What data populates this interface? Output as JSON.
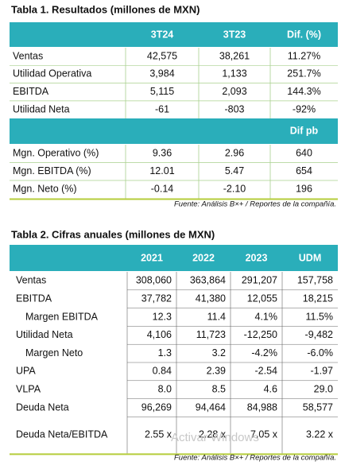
{
  "table1": {
    "title": "Tabla 1. Resultados (millones de MXN)",
    "header": [
      "3T24",
      "3T23",
      "Dif. (%)"
    ],
    "rows": [
      [
        "Ventas",
        "42,575",
        "38,261",
        "11.27%"
      ],
      [
        "Utilidad Operativa",
        "3,984",
        "1,133",
        "251.7%"
      ],
      [
        "EBITDA",
        "5,115",
        "2,093",
        "144.3%"
      ],
      [
        "Utilidad Neta",
        "-61",
        "-803",
        "-92%"
      ]
    ],
    "header2": "Dif pb",
    "rows2": [
      [
        "Mgn. Operativo (%)",
        "9.36",
        "2.96",
        "640"
      ],
      [
        "Mgn. EBITDA (%)",
        "12.01",
        "5.47",
        "654"
      ],
      [
        "Mgn. Neto (%)",
        "-0.14",
        "-2.10",
        "196"
      ]
    ],
    "source": "Fuente: Análisis B×+ / Reportes de la compañía."
  },
  "table2": {
    "title": "Tabla 2. Cifras anuales (millones de MXN)",
    "header": [
      "2021",
      "2022",
      "2023",
      "UDM"
    ],
    "rows": [
      [
        "Ventas",
        "308,060",
        "363,864",
        "291,207",
        "157,758"
      ],
      [
        "EBITDA",
        "37,782",
        "41,380",
        "12,055",
        "18,215"
      ],
      [
        "Margen EBITDA",
        "12.3",
        "11.4",
        "4.1%",
        "11.5%"
      ],
      [
        "Utilidad Neta",
        "4,106",
        "11,723",
        "-12,250",
        "-9,482"
      ],
      [
        "Margen Neto",
        "1.3",
        "3.2",
        "-4.2%",
        "-6.0%"
      ],
      [
        "UPA",
        "0.84",
        "2.39",
        "-2.54",
        "-1.97"
      ],
      [
        "VLPA",
        "8.0",
        "8.5",
        "4.6",
        "29.0"
      ],
      [
        "Deuda Neta",
        "96,269",
        "94,464",
        "84,988",
        "58,577"
      ],
      [
        "Deuda Neta/EBITDA",
        "2.55 x",
        "2.28 x",
        "7.05 x",
        "3.22 x"
      ]
    ],
    "source": "Fuente: Análisis B×+ / Reportes de la compañía."
  },
  "watermark": "Activar Windows"
}
